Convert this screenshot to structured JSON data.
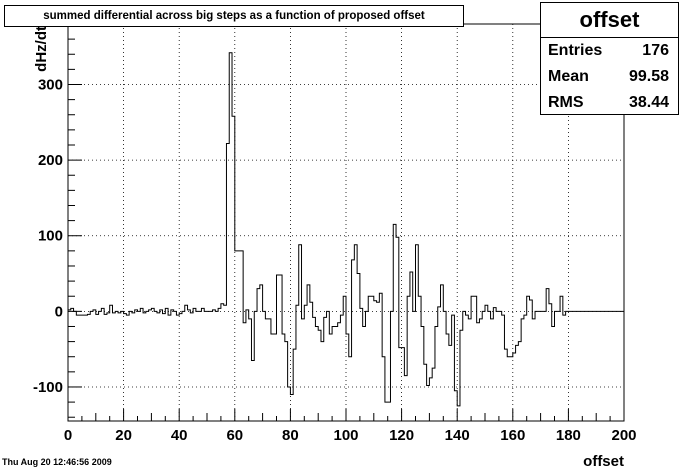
{
  "title": "summed differential across big steps as a function of proposed offset",
  "stats": {
    "name": "offset",
    "rows": [
      {
        "label": "Entries",
        "value": "176"
      },
      {
        "label": "Mean",
        "value": "99.58"
      },
      {
        "label": "RMS",
        "value": "38.44"
      }
    ]
  },
  "timestamp": "Thu Aug 20 12:46:56 2009",
  "chart_data": {
    "type": "histogram",
    "xlabel": "offset",
    "ylabel": "dHz/dt",
    "xlim": [
      0,
      200
    ],
    "ylim": [
      -145,
      380
    ],
    "grid": true,
    "line_color": "#000000",
    "x_ticks": [
      0,
      20,
      40,
      60,
      80,
      100,
      120,
      140,
      160,
      180,
      200
    ],
    "y_ticks": [
      -100,
      0,
      100,
      200,
      300
    ],
    "bin_width": 1,
    "bin_start": 0,
    "values": [
      2,
      4,
      0,
      -5,
      -5,
      -5,
      -5,
      -4,
      0,
      2,
      -4,
      0,
      4,
      -4,
      -2,
      8,
      -2,
      0,
      -2,
      0,
      -3,
      -5,
      0,
      -2,
      2,
      0,
      4,
      -2,
      0,
      2,
      4,
      0,
      -2,
      2,
      -3,
      4,
      -5,
      2,
      0,
      -5,
      -3,
      0,
      8,
      2,
      -2,
      4,
      0,
      0,
      4,
      0,
      0,
      0,
      2,
      0,
      4,
      10,
      8,
      222,
      342,
      258,
      80,
      80,
      80,
      -15,
      2,
      -10,
      -65,
      0,
      30,
      35,
      0,
      -10,
      -10,
      -30,
      -30,
      48,
      48,
      -30,
      -40,
      -100,
      -110,
      -50,
      8,
      88,
      -10,
      8,
      35,
      12,
      -8,
      -20,
      -25,
      -40,
      -8,
      0,
      -30,
      -20,
      -20,
      -15,
      -5,
      20,
      -30,
      -60,
      68,
      88,
      50,
      4,
      -20,
      0,
      20,
      20,
      14,
      12,
      24,
      -60,
      -120,
      -120,
      0,
      115,
      98,
      -48,
      -48,
      -85,
      20,
      52,
      0,
      88,
      20,
      -20,
      -70,
      -98,
      -88,
      -75,
      -20,
      6,
      35,
      0,
      -30,
      -45,
      -5,
      -105,
      -125,
      -25,
      0,
      -5,
      -10,
      20,
      20,
      -15,
      -10,
      0,
      8,
      0,
      -10,
      5,
      0,
      0,
      -5,
      -50,
      -60,
      -60,
      -55,
      -45,
      -40,
      -10,
      -5,
      20,
      15,
      -10,
      0,
      0,
      0,
      0,
      30,
      10,
      -20,
      0,
      0,
      20,
      -5,
      0,
      0,
      0,
      0,
      0,
      0,
      0,
      0,
      0,
      0,
      0,
      0,
      0,
      0,
      0,
      0,
      0,
      0,
      0,
      0,
      0
    ]
  }
}
